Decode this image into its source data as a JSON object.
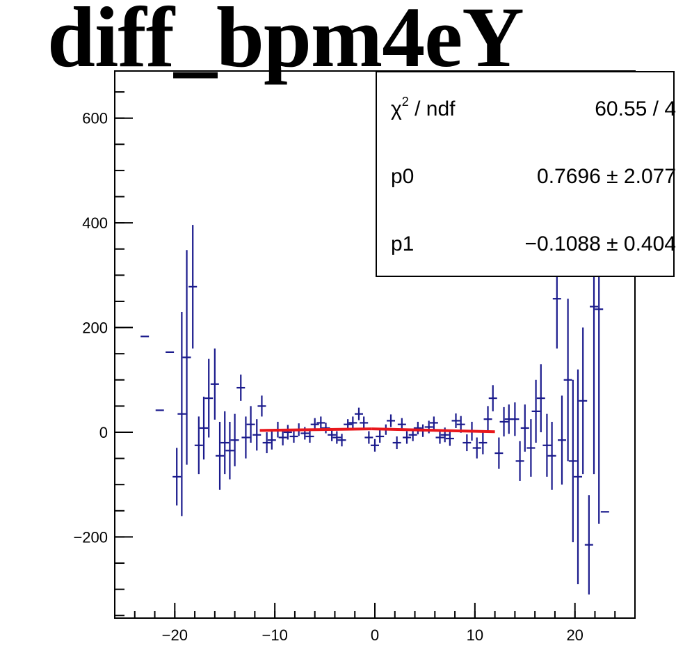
{
  "chart_data": {
    "type": "scatter",
    "title": "diff_bpm4eY",
    "xlabel": "",
    "ylabel": "",
    "xlim": [
      -26,
      26
    ],
    "ylim": [
      -355,
      690
    ],
    "x_ticks": [
      -20,
      -10,
      0,
      10,
      20
    ],
    "y_ticks": [
      -200,
      0,
      200,
      400,
      600
    ],
    "x_tick_labels": [
      "−20",
      "−10",
      "0",
      "10",
      "20"
    ],
    "y_tick_labels": [
      "−200",
      "0",
      "200",
      "400",
      "600"
    ],
    "grid": false,
    "marker_color": "#1a1a8c",
    "fit_color": "#e8171c",
    "points": [
      {
        "x": -23.0,
        "y": 183,
        "err": 0
      },
      {
        "x": -21.5,
        "y": 42,
        "err": 0
      },
      {
        "x": -20.5,
        "y": 153,
        "err": 0
      },
      {
        "x": -19.8,
        "y": -85,
        "err": 55
      },
      {
        "x": -19.3,
        "y": 35,
        "err": 195
      },
      {
        "x": -18.8,
        "y": 143,
        "err": 205
      },
      {
        "x": -18.2,
        "y": 278,
        "err": 118
      },
      {
        "x": -17.6,
        "y": -25,
        "err": 55
      },
      {
        "x": -17.1,
        "y": 8,
        "err": 60
      },
      {
        "x": -16.6,
        "y": 65,
        "err": 75
      },
      {
        "x": -16.0,
        "y": 92,
        "err": 68
      },
      {
        "x": -15.5,
        "y": -45,
        "err": 65
      },
      {
        "x": -15.0,
        "y": -20,
        "err": 60
      },
      {
        "x": -14.5,
        "y": -35,
        "err": 55
      },
      {
        "x": -14.0,
        "y": -15,
        "err": 50
      },
      {
        "x": -13.4,
        "y": 85,
        "err": 25
      },
      {
        "x": -12.9,
        "y": -10,
        "err": 40
      },
      {
        "x": -12.4,
        "y": 15,
        "err": 35
      },
      {
        "x": -11.8,
        "y": -5,
        "err": 30
      },
      {
        "x": -11.3,
        "y": 50,
        "err": 20
      },
      {
        "x": -10.8,
        "y": -20,
        "err": 20
      },
      {
        "x": -10.3,
        "y": -15,
        "err": 18
      },
      {
        "x": -9.7,
        "y": 5,
        "err": 15
      },
      {
        "x": -9.2,
        "y": -10,
        "err": 15
      },
      {
        "x": -8.7,
        "y": 0,
        "err": 14
      },
      {
        "x": -8.1,
        "y": -8,
        "err": 12
      },
      {
        "x": -7.6,
        "y": 5,
        "err": 12
      },
      {
        "x": -7.0,
        "y": -2,
        "err": 12
      },
      {
        "x": -6.5,
        "y": -8,
        "err": 12
      },
      {
        "x": -6.0,
        "y": 15,
        "err": 12
      },
      {
        "x": -5.4,
        "y": 18,
        "err": 12
      },
      {
        "x": -4.9,
        "y": 8,
        "err": 10
      },
      {
        "x": -4.3,
        "y": -5,
        "err": 12
      },
      {
        "x": -3.8,
        "y": -10,
        "err": 12
      },
      {
        "x": -3.3,
        "y": -15,
        "err": 12
      },
      {
        "x": -2.7,
        "y": 15,
        "err": 10
      },
      {
        "x": -2.2,
        "y": 18,
        "err": 12
      },
      {
        "x": -1.6,
        "y": 35,
        "err": 12
      },
      {
        "x": -1.1,
        "y": 18,
        "err": 12
      },
      {
        "x": -0.6,
        "y": -10,
        "err": 12
      },
      {
        "x": 0.0,
        "y": -25,
        "err": 12
      },
      {
        "x": 0.5,
        "y": -8,
        "err": 12
      },
      {
        "x": 1.1,
        "y": 5,
        "err": 10
      },
      {
        "x": 1.6,
        "y": 22,
        "err": 12
      },
      {
        "x": 2.2,
        "y": -20,
        "err": 12
      },
      {
        "x": 2.7,
        "y": 15,
        "err": 12
      },
      {
        "x": 3.2,
        "y": -10,
        "err": 12
      },
      {
        "x": 3.8,
        "y": -5,
        "err": 12
      },
      {
        "x": 4.3,
        "y": 8,
        "err": 12
      },
      {
        "x": 4.8,
        "y": 3,
        "err": 12
      },
      {
        "x": 5.4,
        "y": 10,
        "err": 12
      },
      {
        "x": 5.9,
        "y": 18,
        "err": 12
      },
      {
        "x": 6.5,
        "y": -10,
        "err": 12
      },
      {
        "x": 7.0,
        "y": -5,
        "err": 14
      },
      {
        "x": 7.5,
        "y": -12,
        "err": 14
      },
      {
        "x": 8.1,
        "y": 22,
        "err": 14
      },
      {
        "x": 8.6,
        "y": 15,
        "err": 16
      },
      {
        "x": 9.2,
        "y": -20,
        "err": 16
      },
      {
        "x": 9.7,
        "y": 2,
        "err": 18
      },
      {
        "x": 10.2,
        "y": -30,
        "err": 20
      },
      {
        "x": 10.8,
        "y": -20,
        "err": 22
      },
      {
        "x": 11.3,
        "y": 25,
        "err": 25
      },
      {
        "x": 11.8,
        "y": 65,
        "err": 25
      },
      {
        "x": 12.4,
        "y": -40,
        "err": 30
      },
      {
        "x": 12.9,
        "y": 20,
        "err": 28
      },
      {
        "x": 13.4,
        "y": 25,
        "err": 28
      },
      {
        "x": 14.0,
        "y": 25,
        "err": 32
      },
      {
        "x": 14.5,
        "y": -55,
        "err": 38
      },
      {
        "x": 15.0,
        "y": 8,
        "err": 45
      },
      {
        "x": 15.6,
        "y": -30,
        "err": 55
      },
      {
        "x": 16.1,
        "y": 40,
        "err": 60
      },
      {
        "x": 16.6,
        "y": 65,
        "err": 65
      },
      {
        "x": 17.2,
        "y": -25,
        "err": 60
      },
      {
        "x": 17.7,
        "y": -45,
        "err": 65
      },
      {
        "x": 18.2,
        "y": 255,
        "err": 95
      },
      {
        "x": 18.7,
        "y": -15,
        "err": 85
      },
      {
        "x": 19.3,
        "y": 100,
        "err": 155
      },
      {
        "x": 19.8,
        "y": -55,
        "err": 155
      },
      {
        "x": 20.3,
        "y": -85,
        "err": 205
      },
      {
        "x": 20.8,
        "y": 60,
        "err": 140
      },
      {
        "x": 21.4,
        "y": -215,
        "err": 95
      },
      {
        "x": 21.9,
        "y": 240,
        "err": 320
      },
      {
        "x": 22.4,
        "y": 235,
        "err": 410
      },
      {
        "x": 23.0,
        "y": -152,
        "err": 0
      }
    ],
    "fit_segments": [
      {
        "x0": -11.5,
        "x1": -0.3,
        "y0": 3.5,
        "y1": 6.5
      },
      {
        "x0": -0.3,
        "x1": 12.0,
        "y0": 6.5,
        "y1": 1.0
      }
    ],
    "stats": {
      "rows": [
        {
          "label_main": "χ",
          "label_sup": "2",
          "label_rest": " / ndf",
          "value": "60.55 / 4"
        },
        {
          "label_main": "p0",
          "label_sup": "",
          "label_rest": "",
          "value": "0.7696 ± 2.077"
        },
        {
          "label_main": "p1",
          "label_sup": "",
          "label_rest": "",
          "value": "−0.1088 ± 0.404"
        }
      ]
    }
  }
}
